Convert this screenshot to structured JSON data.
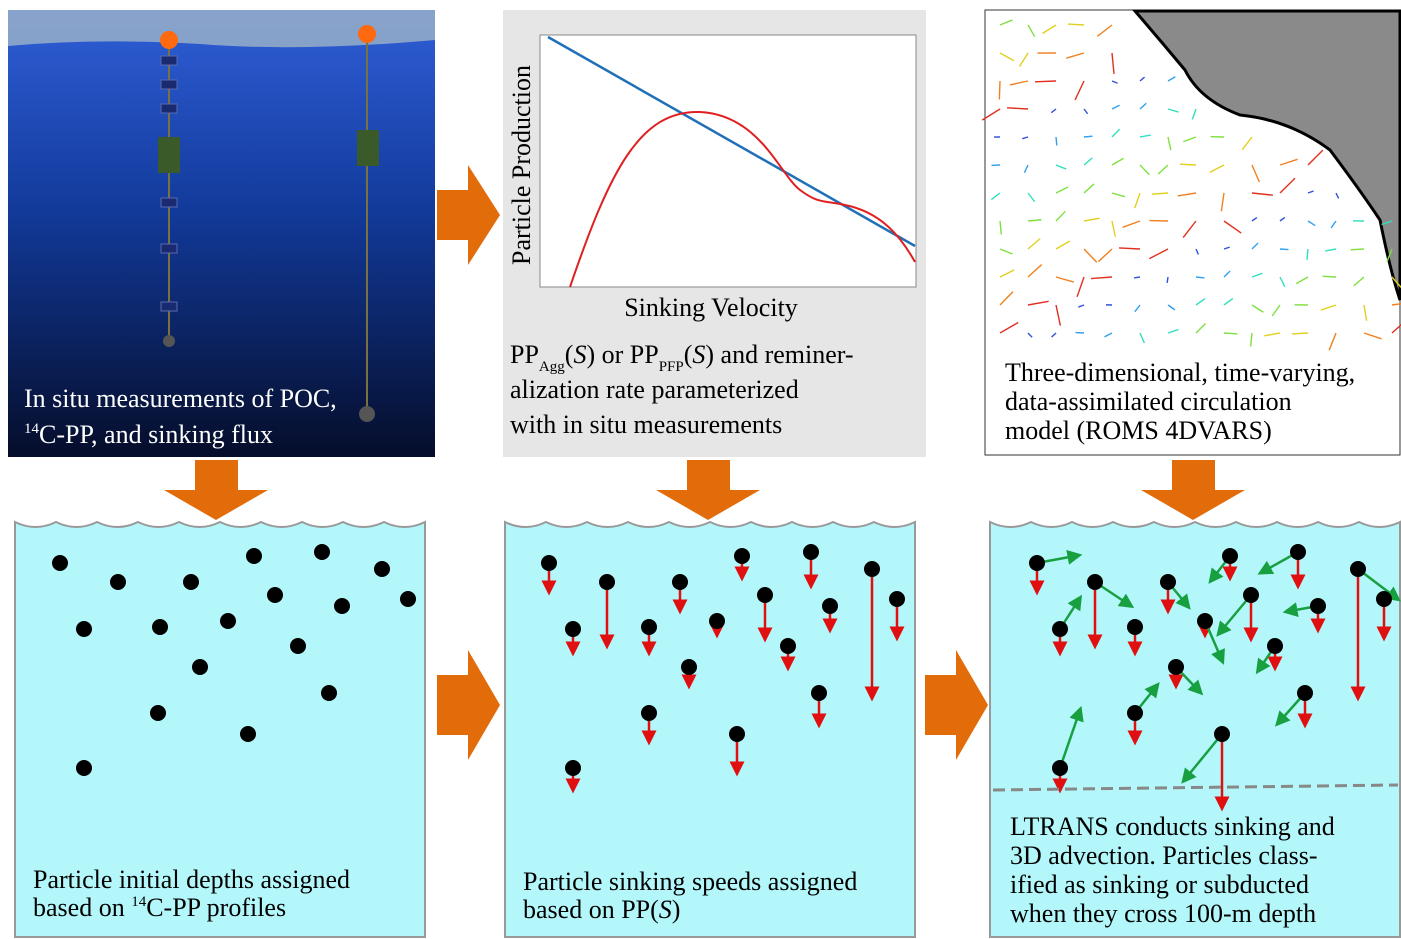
{
  "panels": [
    {
      "caption": [
        [
          "In situ measurements of POC,"
        ],
        [
          "14",
          "C-PP, and sinking flux"
        ]
      ]
    },
    {
      "y_label": "Particle Production",
      "x_label": "Sinking Velocity",
      "caption": [
        [
          "PP",
          "Agg",
          "(",
          "S",
          ") or PP",
          "PFP",
          "(",
          "S",
          ") and reminer-"
        ],
        [
          "alization rate parameterized"
        ],
        [
          "with in situ measurements"
        ]
      ]
    },
    {
      "caption": [
        [
          "Three-dimensional, time-varying,"
        ],
        [
          "data-assimilated  circulation"
        ],
        [
          "model (ROMS 4DVARS)"
        ]
      ]
    },
    {
      "caption": [
        [
          "Particle initial depths assigned"
        ],
        [
          "based on ",
          "14",
          "C-PP profiles"
        ]
      ]
    },
    {
      "caption": [
        [
          "Particle sinking speeds assigned"
        ],
        [
          "based on PP(",
          "S",
          ")"
        ]
      ]
    },
    {
      "caption": [
        [
          "LTRANS conducts sinking and"
        ],
        [
          "3D advection.  Particles class-"
        ],
        [
          "ified as sinking or subducted"
        ],
        [
          "when they cross 100-m depth"
        ]
      ]
    }
  ]
}
